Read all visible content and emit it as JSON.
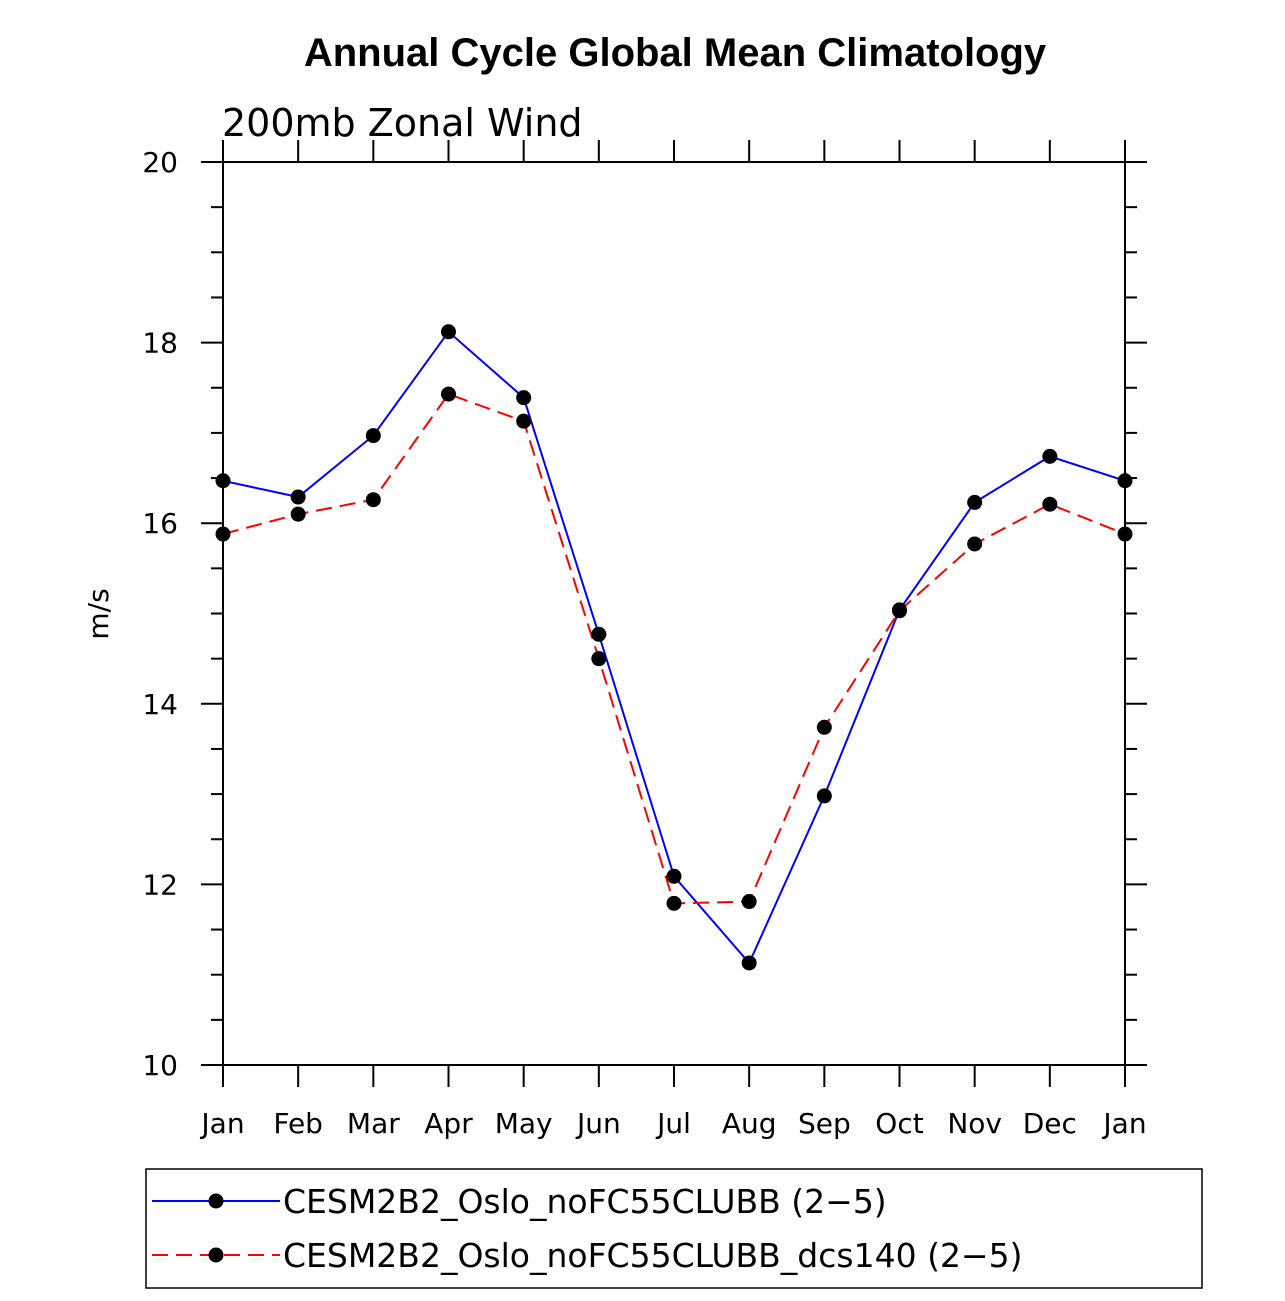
{
  "chart_data": {
    "type": "line",
    "title": "Annual Cycle Global Mean Climatology",
    "subtitle": "200mb Zonal Wind",
    "xlabel": "",
    "ylabel": "m/s",
    "ylim": [
      10,
      20
    ],
    "yticks": [
      "10",
      "12",
      "14",
      "16",
      "18",
      "20"
    ],
    "categories": [
      "Jan",
      "Feb",
      "Mar",
      "Apr",
      "May",
      "Jun",
      "Jul",
      "Aug",
      "Sep",
      "Oct",
      "Nov",
      "Dec",
      "Jan"
    ],
    "series": [
      {
        "name": "CESM2B2_Oslo_noFC55CLUBB (2−5)",
        "color": "#0000ff",
        "dash": "solid",
        "marker": "filled-circle",
        "values": [
          16.47,
          16.29,
          16.97,
          18.12,
          17.39,
          14.77,
          12.09,
          11.13,
          12.98,
          15.04,
          16.23,
          16.74,
          16.47
        ]
      },
      {
        "name": "CESM2B2_Oslo_noFC55CLUBB_dcs140 (2−5)",
        "color": "#ff0000",
        "dash": "dashed",
        "marker": "filled-circle",
        "values": [
          15.88,
          16.1,
          16.26,
          17.43,
          17.13,
          14.5,
          11.79,
          11.81,
          13.74,
          15.03,
          15.77,
          16.21,
          15.88
        ]
      }
    ],
    "legend_position": "bottom",
    "grid": false
  }
}
